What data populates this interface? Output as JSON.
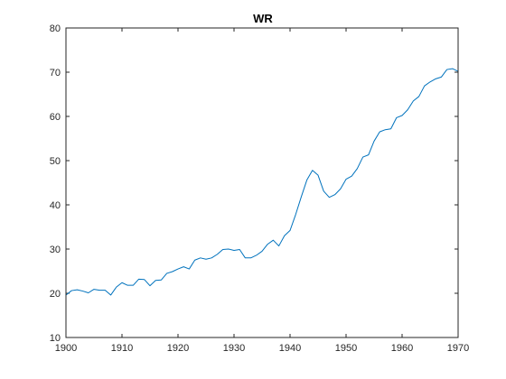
{
  "chart_data": {
    "type": "line",
    "title": "WR",
    "xlabel": "",
    "ylabel": "",
    "xlim": [
      1900,
      1970
    ],
    "ylim": [
      10,
      80
    ],
    "x_ticks": [
      1900,
      1910,
      1920,
      1930,
      1940,
      1950,
      1960,
      1970
    ],
    "y_ticks": [
      10,
      20,
      30,
      40,
      50,
      60,
      70,
      80
    ],
    "grid": false,
    "line_color": "#0072BD",
    "series": [
      {
        "x": [
          1900,
          1901,
          1902,
          1903,
          1904,
          1905,
          1906,
          1907,
          1908,
          1909,
          1910,
          1911,
          1912,
          1913,
          1914,
          1915,
          1916,
          1917,
          1918,
          1919,
          1920,
          1921,
          1922,
          1923,
          1924,
          1925,
          1926,
          1927,
          1928,
          1929,
          1930,
          1931,
          1932,
          1933,
          1934,
          1935,
          1936,
          1937,
          1938,
          1939,
          1940,
          1941,
          1942,
          1943,
          1944,
          1945,
          1946,
          1947,
          1948,
          1949,
          1950,
          1951,
          1952,
          1953,
          1954,
          1955,
          1956,
          1957,
          1958,
          1959,
          1960,
          1961,
          1962,
          1963,
          1964,
          1965,
          1966,
          1967,
          1968,
          1969,
          1970
        ],
        "y": [
          19.6,
          20.6,
          20.8,
          20.5,
          20.1,
          20.9,
          20.7,
          20.7,
          19.6,
          21.4,
          22.4,
          21.8,
          21.8,
          23.2,
          23.1,
          21.7,
          22.9,
          23.0,
          24.5,
          24.9,
          25.5,
          26.0,
          25.5,
          27.5,
          28.0,
          27.7,
          28.0,
          28.8,
          29.9,
          30.0,
          29.7,
          29.9,
          28.0,
          28.0,
          28.6,
          29.5,
          31.1,
          32.0,
          30.7,
          33.0,
          34.2,
          37.8,
          41.8,
          45.6,
          47.8,
          46.7,
          43.1,
          41.7,
          42.3,
          43.6,
          45.8,
          46.5,
          48.2,
          50.8,
          51.3,
          54.4,
          56.5,
          57.0,
          57.2,
          59.7,
          60.2,
          61.5,
          63.5,
          64.5,
          66.9,
          67.8,
          68.5,
          68.9,
          70.6,
          70.8,
          70.2
        ]
      }
    ]
  }
}
